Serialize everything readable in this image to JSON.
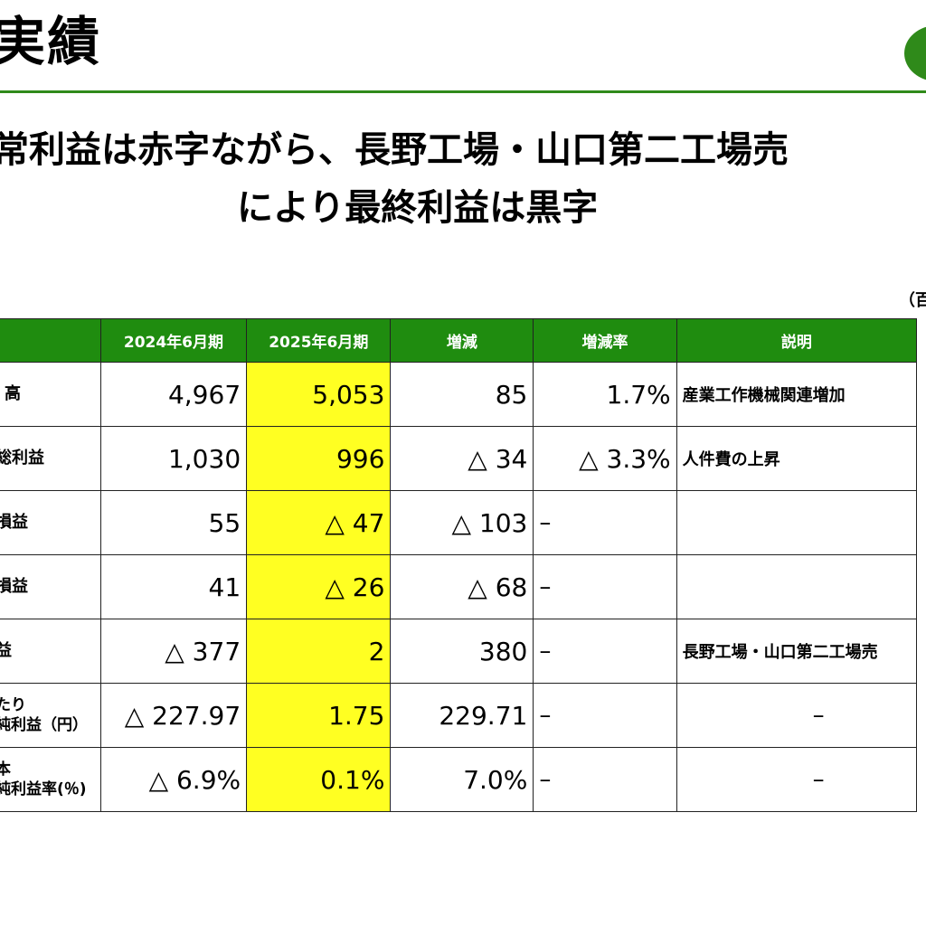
{
  "header": {
    "title": "実績",
    "headline_line1": "常利益は赤字ながら、長野工場・山口第二工場売",
    "headline_line2": "により最終利益は黒字",
    "unit_note": "（百"
  },
  "table": {
    "columns": [
      "",
      "2024年6月期",
      "2025年6月期",
      "増減",
      "増減率",
      "説明"
    ],
    "rows": [
      {
        "label": "高",
        "fy2024": "4,967",
        "fy2025": "5,053",
        "change": "85",
        "rate": "1.7%",
        "note": "産業工作機械関連増加"
      },
      {
        "label": "総利益",
        "fy2024": "1,030",
        "fy2025": "996",
        "change": "△ 34",
        "rate": "△ 3.3%",
        "note": "人件費の上昇"
      },
      {
        "label": "損益",
        "fy2024": "55",
        "fy2025": "△ 47",
        "change": "△ 103",
        "rate": "–",
        "note": ""
      },
      {
        "label": "損益",
        "fy2024": "41",
        "fy2025": "△ 26",
        "change": "△ 68",
        "rate": "–",
        "note": ""
      },
      {
        "label": "益",
        "fy2024": "△ 377",
        "fy2025": "2",
        "change": "380",
        "rate": "–",
        "note": "長野工場・山口第二工場売"
      },
      {
        "label": "たり\n純利益（円）",
        "fy2024": "△ 227.97",
        "fy2025": "1.75",
        "change": "229.71",
        "rate": "–",
        "note": "–"
      },
      {
        "label": "本\n純利益率(％)",
        "fy2024": "△ 6.9%",
        "fy2025": "0.1%",
        "change": "7.0%",
        "rate": "–",
        "note": "–"
      }
    ]
  },
  "colors": {
    "accent_green": "#1f8c0f",
    "highlight_yellow": "#ffff22"
  }
}
